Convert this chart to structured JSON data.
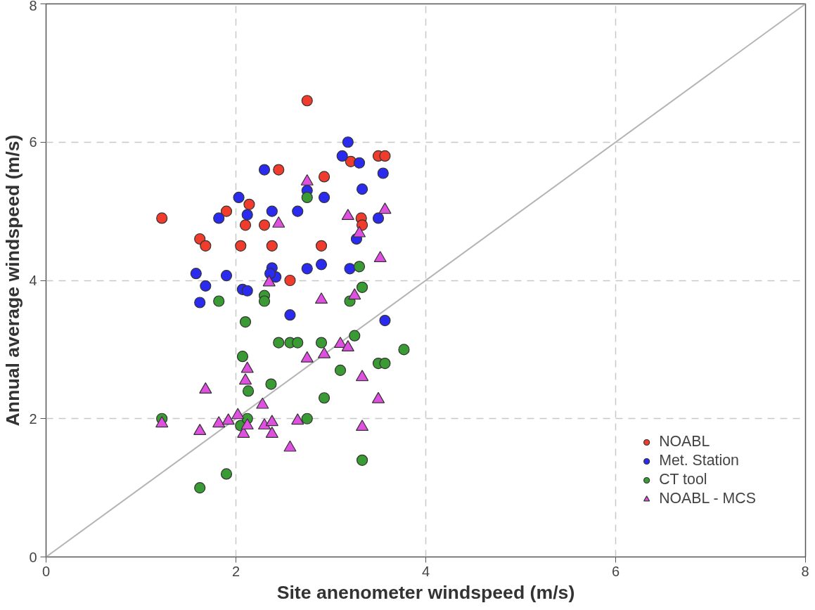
{
  "chart_data": {
    "type": "scatter",
    "xlabel": "Site anenometer windspeed (m/s)",
    "ylabel": "Annual average windspeed (m/s)",
    "xlim": [
      0,
      8
    ],
    "ylim": [
      0,
      8
    ],
    "xticks": [
      0,
      2,
      4,
      6,
      8
    ],
    "yticks": [
      0,
      2,
      4,
      6,
      8
    ],
    "grid": true,
    "legend": "bottom right",
    "series": [
      {
        "type": "line",
        "color": "#b4b4b4",
        "x": [
          0,
          8
        ],
        "values": [
          0,
          8
        ],
        "marker": "none"
      },
      {
        "name": "NOABL",
        "color": "#f03c2d",
        "marker": "circle",
        "x": [
          1.22,
          1.62,
          1.68,
          1.9,
          2.05,
          2.1,
          2.14,
          2.3,
          2.38,
          2.45,
          2.57,
          2.75,
          2.9,
          2.93,
          3.21,
          3.32,
          3.33,
          3.5,
          3.57
        ],
        "values": [
          4.9,
          4.6,
          4.5,
          5.0,
          4.5,
          4.8,
          5.1,
          4.8,
          4.5,
          5.6,
          4.0,
          6.6,
          4.5,
          5.5,
          5.72,
          4.9,
          4.8,
          5.8,
          5.8
        ]
      },
      {
        "name": "Met. Station",
        "color": "#2b2bf0",
        "marker": "circle",
        "x": [
          1.58,
          1.62,
          1.68,
          1.82,
          1.9,
          2.03,
          2.07,
          2.12,
          2.12,
          2.3,
          2.38,
          2.38,
          2.42,
          2.36,
          2.57,
          2.65,
          2.75,
          2.75,
          2.9,
          2.93,
          3.12,
          3.18,
          3.2,
          3.27,
          3.3,
          3.33,
          3.5,
          3.55,
          3.57
        ],
        "values": [
          4.1,
          3.68,
          3.92,
          4.9,
          4.07,
          5.2,
          3.87,
          3.85,
          4.95,
          5.6,
          5.0,
          4.18,
          4.05,
          4.1,
          3.5,
          5.0,
          4.17,
          5.3,
          4.23,
          5.2,
          5.8,
          6.0,
          4.17,
          4.6,
          5.7,
          5.32,
          4.9,
          5.55,
          3.42
        ]
      },
      {
        "name": "CT tool",
        "color": "#3a9a34",
        "marker": "circle",
        "x": [
          1.22,
          1.62,
          1.82,
          1.9,
          2.05,
          2.07,
          2.1,
          2.12,
          2.13,
          2.3,
          2.3,
          2.37,
          2.45,
          2.57,
          2.65,
          2.75,
          2.75,
          2.9,
          2.93,
          3.1,
          3.2,
          3.25,
          3.3,
          3.33,
          3.33,
          3.5,
          3.57,
          3.77
        ],
        "values": [
          2.0,
          1.0,
          3.7,
          1.2,
          1.9,
          2.9,
          3.4,
          2.0,
          2.4,
          3.78,
          3.7,
          2.5,
          3.1,
          3.1,
          3.1,
          2.0,
          5.2,
          3.1,
          2.3,
          2.7,
          3.7,
          3.2,
          4.2,
          3.9,
          1.4,
          2.8,
          2.8,
          3.0
        ]
      },
      {
        "name": "NOABL - MCS",
        "color": "#e050e0",
        "marker": "triangle",
        "x": [
          1.22,
          1.62,
          1.68,
          1.82,
          1.92,
          2.02,
          2.08,
          2.1,
          2.12,
          2.12,
          2.28,
          2.3,
          2.35,
          2.38,
          2.38,
          2.45,
          2.57,
          2.65,
          2.75,
          2.75,
          2.9,
          2.93,
          3.1,
          3.18,
          3.18,
          3.25,
          3.3,
          3.33,
          3.33,
          3.5,
          3.52,
          3.57
        ],
        "values": [
          1.93,
          1.82,
          2.42,
          1.93,
          1.97,
          2.05,
          1.78,
          2.55,
          2.72,
          1.9,
          2.2,
          1.9,
          3.97,
          1.78,
          1.95,
          4.82,
          1.58,
          1.97,
          2.87,
          5.43,
          3.72,
          2.93,
          3.08,
          3.03,
          4.93,
          3.78,
          4.68,
          2.6,
          1.88,
          2.28,
          4.32,
          5.02
        ]
      }
    ]
  }
}
